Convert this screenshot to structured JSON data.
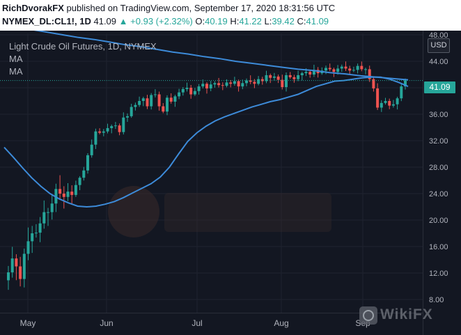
{
  "header": {
    "author": "RichDvorakFX",
    "published": "published on TradingView.com, September 17, 2020 18:31:56 UTC",
    "symbol": "NYMEX_DL:CL1!, 1D",
    "last": "41.09",
    "change": "+0.93 (+2.32%)",
    "open_label": "O:",
    "open": "40.19",
    "high_label": "H:",
    "high": "41.22",
    "low_label": "L:",
    "low": "39.42",
    "close_label": "C:",
    "close": "41.09"
  },
  "legend": {
    "title": "Light Crude Oil Futures, 1D, NYMEX",
    "ma1": "MA",
    "ma2": "MA"
  },
  "currency_label": "USD",
  "last_price_badge": "41.09",
  "watermark": "WikiFX",
  "colors": {
    "up": "#26a69a",
    "down": "#ef5350",
    "ma": "#3d8bd9",
    "background": "#131722",
    "grid": "#1f2330"
  },
  "chart_data": {
    "type": "candlestick",
    "title": "Light Crude Oil Futures, 1D, NYMEX",
    "x_labels": [
      "May",
      "Jun",
      "Jul",
      "Aug",
      "Sep"
    ],
    "y_ticks": [
      "8.00",
      "12.00",
      "16.00",
      "20.00",
      "24.00",
      "28.00",
      "32.00",
      "36.00",
      "40.00",
      "44.00",
      "48.00"
    ],
    "ylim": [
      8,
      48
    ],
    "grid": true,
    "last_price": 41.09,
    "approx_closes": [
      12.1,
      14.2,
      13.0,
      11.1,
      14.9,
      16.8,
      18.0,
      18.1,
      19.5,
      21.2,
      21.2,
      22.5,
      24.7,
      24.0,
      23.5,
      24.3,
      23.8,
      25.3,
      26.4,
      27.5,
      29.8,
      31.4,
      33.4,
      33.2,
      33.4,
      33.9,
      34.2,
      34.3,
      33.3,
      35.5,
      35.7,
      37.1,
      37.4,
      38.0,
      38.4,
      37.2,
      38.9,
      39.0,
      37.2,
      36.4,
      38.5,
      37.9,
      38.7,
      39.3,
      39.8,
      40.0,
      39.0,
      39.5,
      40.2,
      40.6,
      39.9,
      40.5,
      40.7,
      40.4,
      40.3,
      40.8,
      40.6,
      41.0,
      40.2,
      40.7,
      41.1,
      40.9,
      40.6,
      41.3,
      41.0,
      41.9,
      41.5,
      41.7,
      41.2,
      40.1,
      41.9,
      41.6,
      41.3,
      41.9,
      42.2,
      42.4,
      42.0,
      42.7,
      42.2,
      42.6,
      43.0,
      42.8,
      42.4,
      42.9,
      43.2,
      42.9,
      42.6,
      42.7,
      43.3,
      42.8,
      42.8,
      41.3,
      39.9,
      37.0,
      37.7,
      38.0,
      37.3,
      37.5,
      38.4,
      40.2,
      41.1
    ],
    "series": [
      {
        "name": "MA",
        "values": [
          31,
          29.5,
          27.9,
          26.4,
          25.1,
          24,
          23.2,
          22.6,
          22.1,
          22,
          22.1,
          22.4,
          22.8,
          23.4,
          24.1,
          24.8,
          25.5,
          26.5,
          28,
          30,
          31.9,
          33.2,
          34.2,
          35,
          35.6,
          36.1,
          36.6,
          37.1,
          37.5,
          37.9,
          38.2,
          38.6,
          39,
          39.6,
          40.2,
          40.6,
          41,
          41.1,
          41.3,
          41.5,
          41.6,
          41.6,
          41.3,
          40.8,
          40.2
        ]
      },
      {
        "name": "MA",
        "values": [
          49.5,
          49.2,
          48.8,
          48.4,
          48.0,
          47.6,
          47.3,
          46.9,
          46.5,
          46.2,
          45.8,
          45.4,
          45.1,
          44.7,
          44.4,
          44.0,
          43.7,
          43.4,
          43.1,
          42.8,
          42.6,
          42.3,
          42.1,
          41.8,
          41.6,
          41.4,
          41.2
        ]
      }
    ]
  }
}
